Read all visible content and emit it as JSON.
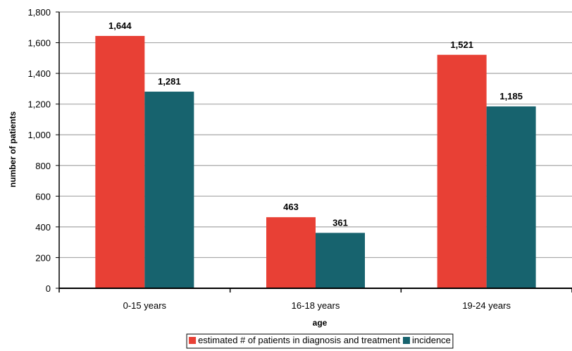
{
  "chart_data": {
    "type": "bar",
    "categories": [
      "0-15 years",
      "16-18 years",
      "19-24 years"
    ],
    "series": [
      {
        "name": "estimated # of patients in diagnosis and treatment",
        "values": [
          1644,
          463,
          1521
        ],
        "labels": [
          "1,644",
          "463",
          "1,521"
        ],
        "color": "#e84035"
      },
      {
        "name": "incidence",
        "values": [
          1281,
          361,
          1185
        ],
        "labels": [
          "1,281",
          "361",
          "1,185"
        ],
        "color": "#17636e"
      }
    ],
    "xlabel": "age",
    "ylabel": "number of patients",
    "ylim": [
      0,
      1800
    ],
    "yticks": [
      0,
      200,
      400,
      600,
      800,
      1000,
      1200,
      1400,
      1600,
      1800
    ],
    "ytick_labels": [
      "0",
      "200",
      "400",
      "600",
      "800",
      "1,000",
      "1,200",
      "1,400",
      "1,600",
      "1,800"
    ],
    "grid": true,
    "legend_position": "bottom"
  }
}
